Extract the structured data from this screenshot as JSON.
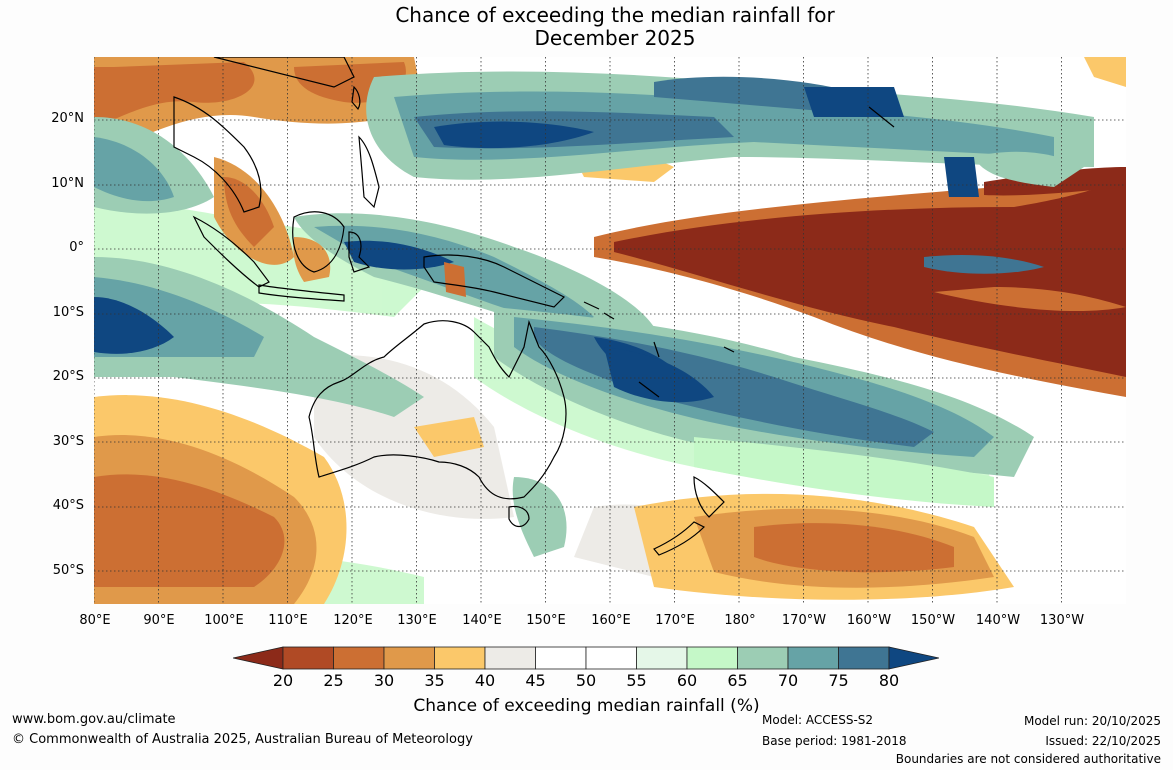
{
  "title_line1": "Chance of exceeding the median rainfall for",
  "title_line2": "December 2025",
  "lat_labels": [
    "20°N",
    "10°N",
    "0°",
    "10°S",
    "20°S",
    "30°S",
    "40°S",
    "50°S"
  ],
  "lon_labels": [
    "80°E",
    "90°E",
    "100°E",
    "110°E",
    "120°E",
    "130°E",
    "140°E",
    "150°E",
    "160°E",
    "170°E",
    "180°",
    "170°W",
    "160°W",
    "150°W",
    "140°W",
    "130°W"
  ],
  "colorbar": {
    "ticks": [
      "20",
      "25",
      "30",
      "35",
      "40",
      "45",
      "50",
      "55",
      "60",
      "65",
      "70",
      "75",
      "80"
    ],
    "colors": {
      "below20": "#8c2a19",
      "c20_25": "#b04a25",
      "c25_30": "#cc6f33",
      "c30_35": "#e0994a",
      "c35_40": "#fbc86a",
      "c40_45": "#edebe7",
      "c45_50": "#ffffff",
      "c50_55": "#ffffff",
      "c55_60": "#e5f7e8",
      "c60_65": "#c5f8c8",
      "c65_70": "#9ccdb4",
      "c70_75": "#66a3a6",
      "c75_80": "#3f7593",
      "above80": "#0f4781"
    },
    "label": "Chance of exceeding median rainfall (%)"
  },
  "footer": {
    "website": "www.bom.gov.au/climate",
    "copyright": "© Commonwealth of Australia 2025, Australian Bureau of Meteorology",
    "model": "Model: ACCESS-S2",
    "base_period": "Base period: 1981-2018",
    "model_run": "Model run: 20/10/2025",
    "issued": "Issued: 22/10/2025",
    "disclaimer": "Boundaries are not considered authoritative"
  }
}
